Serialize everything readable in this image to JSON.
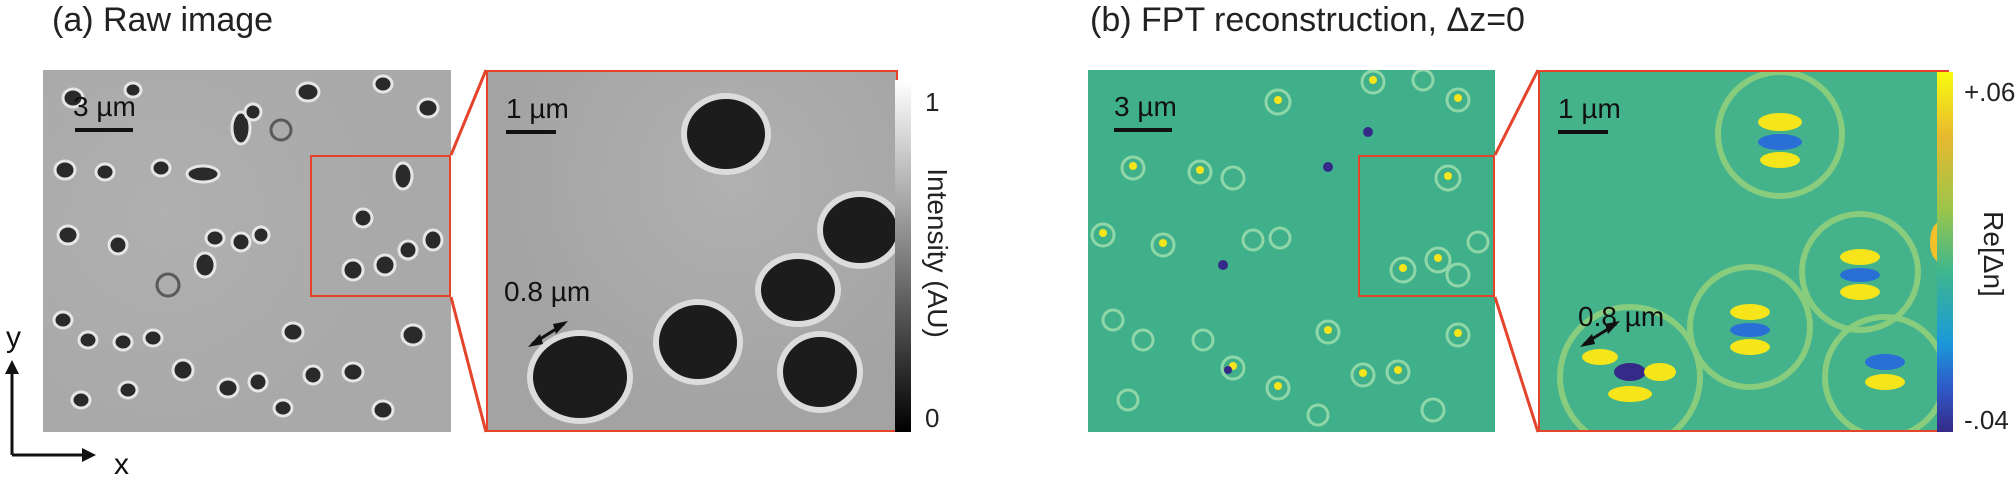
{
  "panel_a": {
    "title": "(a) Raw image",
    "scale_main": "3 µm",
    "scale_zoom": "1 µm",
    "size_annotation": "0.8 µm",
    "colorbar": {
      "title": "Intensity (AU)",
      "max_label": "1",
      "min_label": "0"
    }
  },
  "panel_b": {
    "title": "(b) FPT reconstruction, Δz=0",
    "scale_main": "3 µm",
    "scale_zoom": "1 µm",
    "size_annotation": "0.8 µm",
    "colorbar": {
      "title": "Re[Δn]",
      "max_label": "+.06",
      "min_label": "-.04"
    }
  },
  "axes": {
    "y_label": "y",
    "x_label": "x"
  },
  "colors": {
    "highlight_box": "#e4442b",
    "raw_background": "#a9a9a9",
    "fpt_background": "#3fb089",
    "fpt_high": "#f5e51a",
    "fpt_low": "#352a87"
  }
}
